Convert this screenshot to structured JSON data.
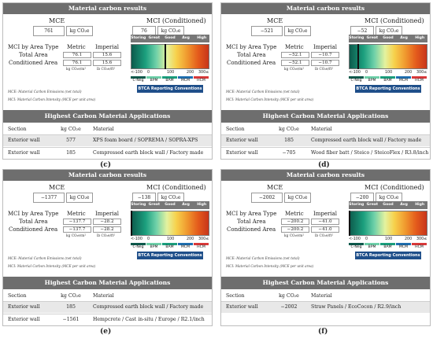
{
  "common": {
    "header": "Material carbon results",
    "mce_label": "MCE",
    "mci_cond_label": "MCI (Conditioned)",
    "unit_kgco2e": "kg CO₂e",
    "mci_by_area": "MCI by Area Type",
    "metric": "Metric",
    "imperial": "Imperial",
    "total_area": "Total Area",
    "conditioned_area": "Conditioned Area",
    "unit_metric": "kg CO₂e/m²",
    "unit_imperial": "lb CO₂e/ft²",
    "note1": "MCE: Material Carbon Emissions (net total)",
    "note2": "MCI: Material Carbon Intensity (MCE per unit area)",
    "sub_header": "Highest Carbon Material Applications",
    "col_section": "Section",
    "col_kg": "kg CO₂e",
    "col_material": "Material",
    "legend": {
      "tabs": [
        "Storing",
        "Great",
        "Good",
        "Avg",
        "High"
      ],
      "ticks": [
        "<-100",
        "0",
        "100",
        "200",
        "300≤"
      ],
      "categories": [
        {
          "label": "C-Neg",
          "color": "#0d5a4c"
        },
        {
          "label": "BPM",
          "color": "#6ed0a9"
        },
        {
          "label": "BAM",
          "color": "#1b9e7d"
        },
        {
          "label": "MCM",
          "color": "#1f6fb0"
        },
        {
          "label": "HCM",
          "color": "#d9393a"
        }
      ],
      "btca": "BTCA Reporting Conventions",
      "colors": {
        "tab": "#777777",
        "btca": "#1f4f8a"
      }
    }
  },
  "panels": [
    {
      "caption": "(c)",
      "mce": "761",
      "mci_cond": "76",
      "total_metric": "76.1",
      "total_imperial": "15.6",
      "cond_metric": "76.1",
      "cond_imperial": "15.6",
      "rows": [
        {
          "section": "Exterior wall",
          "kg": "577",
          "material": "XPS foam board / SOPREMA / SOPRA-XPS"
        },
        {
          "section": "Exterior wall",
          "kg": "185",
          "material": "Compressed earth block wall / Factory made"
        }
      ]
    },
    {
      "caption": "(d)",
      "mce": "−521",
      "mci_cond": "−52",
      "total_metric": "−52.1",
      "total_imperial": "−10.7",
      "cond_metric": "−52.1",
      "cond_imperial": "−10.7",
      "rows": [
        {
          "section": "Exterior wall",
          "kg": "185",
          "material": "Compressed earth block wall / Factory made"
        },
        {
          "section": "Exterior wall",
          "kg": "−705",
          "material": "Wood fiber batt / Steico / SteicoFlex / R3.8/inch"
        }
      ]
    },
    {
      "caption": "(e)",
      "mce": "−1377",
      "mci_cond": "−138",
      "total_metric": "−137.7",
      "total_imperial": "−28.2",
      "cond_metric": "−137.7",
      "cond_imperial": "−28.2",
      "rows": [
        {
          "section": "Exterior wall",
          "kg": "185",
          "material": "Compressed earth block wall / Factory made"
        },
        {
          "section": "Exterior wall",
          "kg": "−1561",
          "material": "Hempcrete / Cast in-situ / Europe / R2.1/inch"
        }
      ]
    },
    {
      "caption": "(f)",
      "mce": "−2002",
      "mci_cond": "−200",
      "total_metric": "−200.2",
      "total_imperial": "−41.0",
      "cond_metric": "−200.2",
      "cond_imperial": "−41.0",
      "rows": [
        {
          "section": "Exterior wall",
          "kg": "−2002",
          "material": "Straw Panels / EcoCocon / R2.9/inch"
        }
      ]
    }
  ]
}
